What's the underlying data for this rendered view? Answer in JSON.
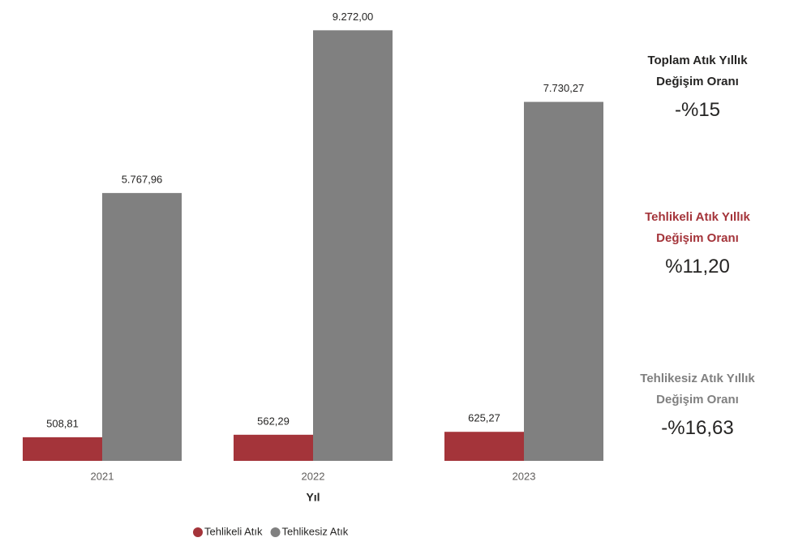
{
  "chart_data": {
    "type": "bar",
    "categories": [
      "2021",
      "2022",
      "2023"
    ],
    "x_label": "Yıl",
    "series": [
      {
        "name": "Tehlikeli Atık",
        "color": "#a4343a",
        "values": [
          508.81,
          562.29,
          625.27
        ],
        "value_labels": [
          "508,81",
          "562,29",
          "625,27"
        ]
      },
      {
        "name": "Tehlikesiz Atık",
        "color": "#808080",
        "values": [
          5767.96,
          9272.0,
          7730.27
        ],
        "value_labels": [
          "5.767,96",
          "9.272,00",
          "7.730,27"
        ]
      }
    ],
    "ylim": [
      0,
      9400
    ],
    "legend": "bottom"
  },
  "cards": [
    {
      "title": "Toplam Atık Yıllık Değişim Oranı",
      "value": "-%15",
      "color": "#252423"
    },
    {
      "title": "Tehlikeli Atık Yıllık Değişim Oranı",
      "value": "%11,20",
      "color": "#a4343a"
    },
    {
      "title": "Tehlikesiz Atık Yıllık Değişim Oranı",
      "value": "-%16,63",
      "color": "#808080"
    }
  ]
}
